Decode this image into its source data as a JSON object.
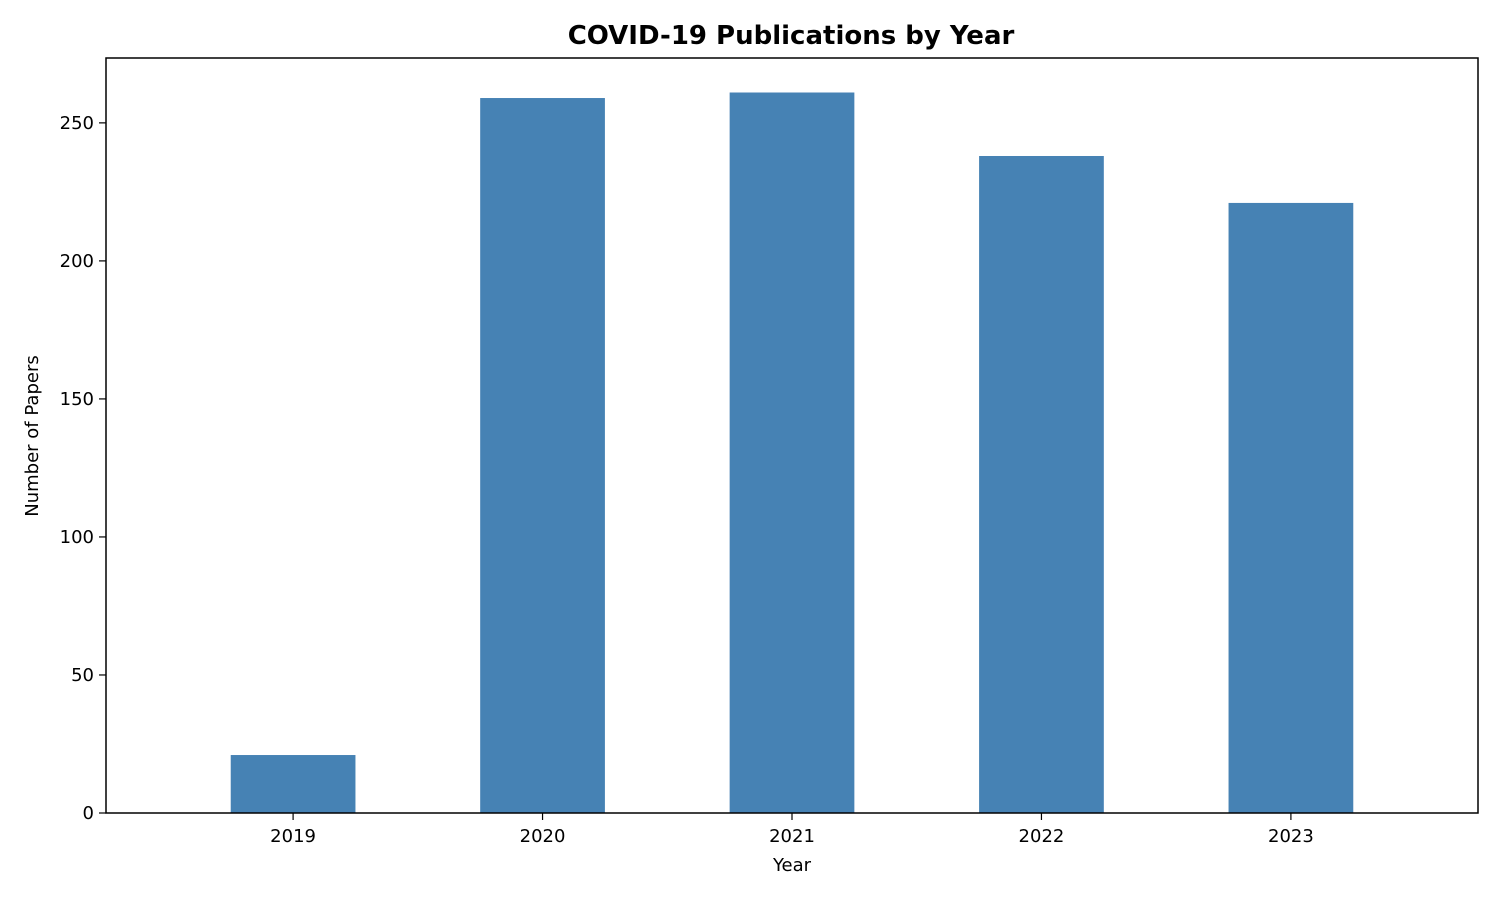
{
  "chart_data": {
    "type": "bar",
    "title": "COVID-19 Publications by Year",
    "xlabel": "Year",
    "ylabel": "Number of Papers",
    "categories": [
      "2019",
      "2020",
      "2021",
      "2022",
      "2023"
    ],
    "values": [
      21,
      259,
      261,
      238,
      221
    ],
    "ylim": [
      0,
      273.5
    ],
    "yticks": [
      0,
      50,
      100,
      150,
      200,
      250
    ],
    "grid": false,
    "bar_color": "#4682b4"
  }
}
